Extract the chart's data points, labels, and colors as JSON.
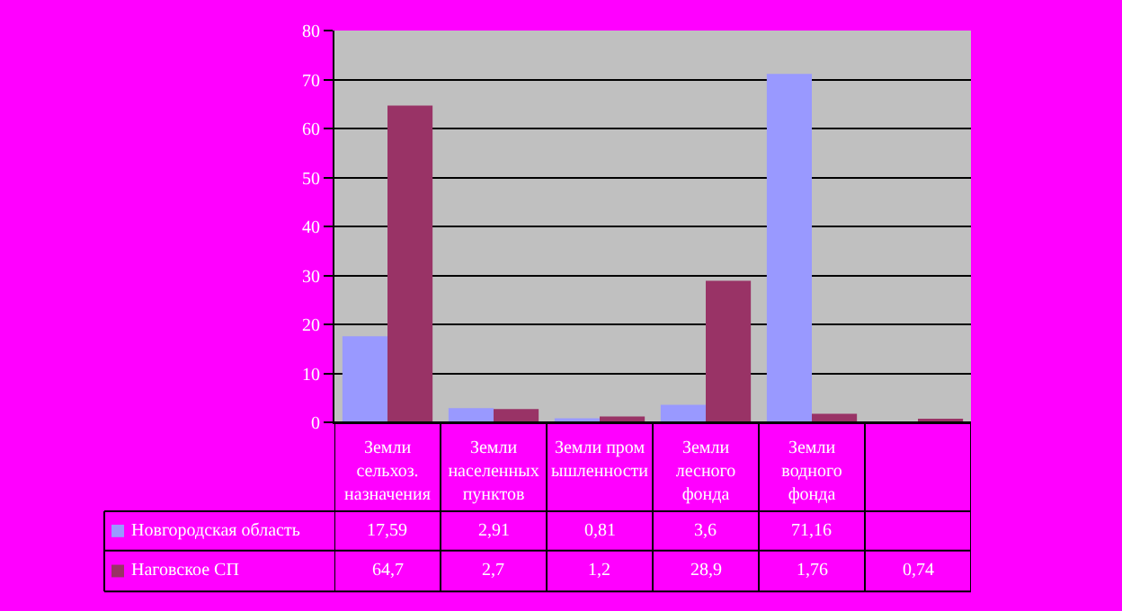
{
  "chart_data": {
    "type": "bar",
    "categories": [
      "Земли сельхоз. назначения",
      "Земли населенных пунктов",
      "Земли промышленности",
      "Земли лесного фонда",
      "Земли водного фонда",
      null
    ],
    "series": [
      {
        "name": "Новгородская область",
        "color": "#9999ff",
        "values": [
          17.59,
          2.91,
          0.81,
          3.6,
          71.16,
          null
        ],
        "value_labels": [
          "17,59",
          "2,91",
          "0,81",
          "3,6",
          "71,16",
          null
        ]
      },
      {
        "name": "Наговское СП",
        "color": "#993366",
        "values": [
          64.7,
          2.7,
          1.2,
          28.9,
          1.76,
          0.74
        ],
        "value_labels": [
          "64,7",
          "2,7",
          "1,2",
          "28,9",
          "1,76",
          "0,74"
        ]
      }
    ],
    "ylim": [
      0,
      80
    ],
    "yticks": [
      0,
      10,
      20,
      30,
      40,
      50,
      60,
      70,
      80
    ],
    "grid": "y",
    "legend": "bottom left"
  }
}
